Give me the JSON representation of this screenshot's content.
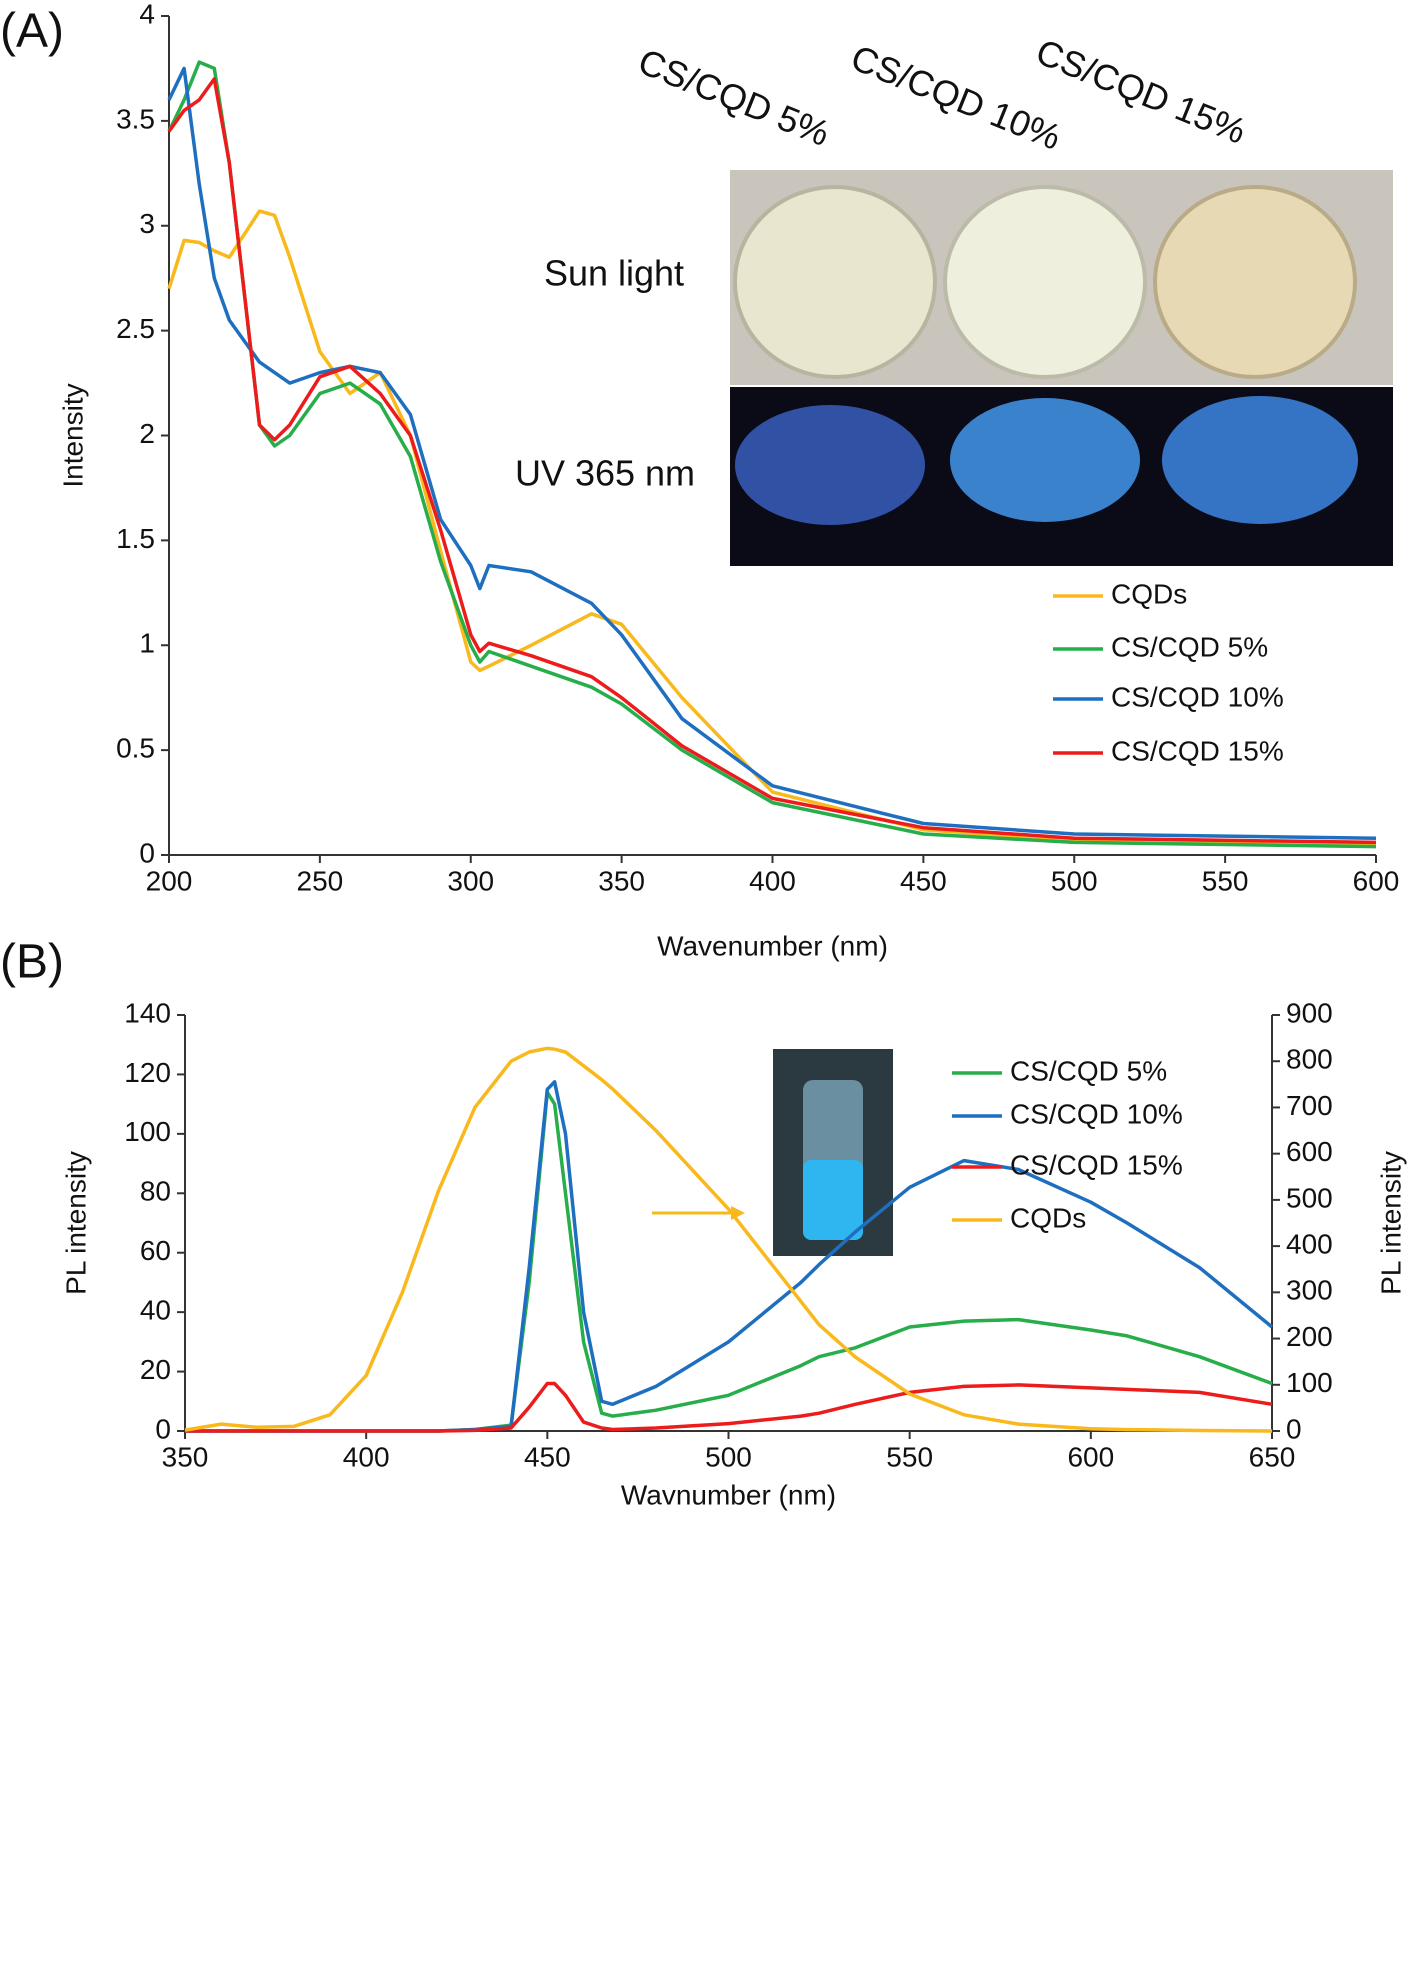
{
  "chart_data": [
    {
      "type": "line",
      "panel_label": "(A)",
      "xlabel": "Wavenumber (nm)",
      "ylabel": "Intensity",
      "x": [
        200,
        205,
        210,
        215,
        220,
        230,
        235,
        240,
        250,
        260,
        270,
        280,
        290,
        300,
        303,
        306,
        320,
        340,
        350,
        370,
        400,
        450,
        500,
        600
      ],
      "series": [
        {
          "name": "CQDs",
          "color": "#f9b81b",
          "values": [
            2.7,
            2.93,
            2.92,
            2.88,
            2.85,
            3.07,
            3.05,
            2.85,
            2.4,
            2.2,
            2.3,
            2.0,
            1.45,
            0.92,
            0.88,
            0.9,
            1.0,
            1.15,
            1.1,
            0.75,
            0.3,
            0.12,
            0.07,
            0.05
          ]
        },
        {
          "name": "CS/CQD 5%",
          "color": "#27ae4a",
          "values": [
            3.45,
            3.6,
            3.78,
            3.75,
            3.3,
            2.05,
            1.95,
            2.0,
            2.2,
            2.25,
            2.15,
            1.9,
            1.4,
            1.0,
            0.92,
            0.97,
            0.9,
            0.8,
            0.72,
            0.5,
            0.25,
            0.1,
            0.06,
            0.04
          ]
        },
        {
          "name": "CS/CQD 10%",
          "color": "#1f6fc0",
          "values": [
            3.6,
            3.75,
            3.2,
            2.75,
            2.55,
            2.35,
            2.3,
            2.25,
            2.3,
            2.33,
            2.3,
            2.1,
            1.6,
            1.38,
            1.27,
            1.38,
            1.35,
            1.2,
            1.05,
            0.65,
            0.33,
            0.15,
            0.1,
            0.08
          ]
        },
        {
          "name": "CS/CQD 15%",
          "color": "#ec1c1c",
          "values": [
            3.45,
            3.55,
            3.6,
            3.7,
            3.3,
            2.05,
            1.98,
            2.05,
            2.28,
            2.33,
            2.2,
            2.0,
            1.55,
            1.05,
            0.97,
            1.01,
            0.95,
            0.85,
            0.75,
            0.52,
            0.27,
            0.13,
            0.08,
            0.06
          ]
        }
      ],
      "xlim": [
        200,
        600
      ],
      "xticks": [
        200,
        250,
        300,
        350,
        400,
        450,
        500,
        550,
        600
      ],
      "ylim": [
        0,
        4
      ],
      "yticks": [
        0,
        0.5,
        1,
        1.5,
        2,
        2.5,
        3,
        3.5,
        4
      ],
      "annotations": [
        "CS/CQD 5%",
        "CS/CQD 10%",
        "CS/CQD 15%",
        "Sun light",
        "UV 365 nm"
      ]
    },
    {
      "type": "line",
      "panel_label": "(B)",
      "xlabel": "Wavnumber (nm)",
      "ylabel": "PL intensity",
      "y2label": "PL intensity",
      "x": [
        350,
        360,
        370,
        380,
        390,
        400,
        410,
        420,
        430,
        440,
        445,
        450,
        452,
        455,
        460,
        465,
        468,
        480,
        500,
        520,
        525,
        535,
        550,
        565,
        580,
        600,
        610,
        630,
        650
      ],
      "series": [
        {
          "name": "CS/CQD 5%",
          "color": "#27ae4a",
          "values": [
            0,
            0,
            0,
            0,
            0,
            0,
            0,
            0,
            0.5,
            2,
            50,
            114,
            110,
            80,
            30,
            6,
            5,
            7,
            12,
            22,
            25,
            28,
            35,
            37,
            37.5,
            34,
            32,
            25,
            16
          ]
        },
        {
          "name": "CS/CQD 10%",
          "color": "#1f6fc0",
          "values": [
            0,
            0,
            0,
            0,
            0,
            0,
            0,
            0,
            0.5,
            1.5,
            55,
            115,
            117.5,
            100,
            40,
            10,
            9,
            15,
            30,
            50,
            56,
            67,
            82,
            91,
            88,
            77,
            70,
            55,
            35
          ]
        },
        {
          "name": "CS/CQD 15%",
          "color": "#ec1c1c",
          "values": [
            0,
            0,
            0,
            0,
            0,
            0,
            0,
            0,
            0.2,
            1,
            8,
            16,
            16,
            12,
            3,
            1,
            0.5,
            1,
            2.5,
            5,
            6,
            9,
            13,
            15,
            15.5,
            14.5,
            14,
            13,
            9
          ]
        },
        {
          "name": "CQDs",
          "color": "#f9b81b",
          "axis": "y2",
          "values": [
            2,
            15,
            8,
            10,
            35,
            120,
            300,
            520,
            700,
            800,
            820,
            828,
            826,
            820,
            790,
            760,
            740,
            650,
            480,
            280,
            230,
            160,
            80,
            35,
            15,
            5,
            3,
            1,
            0
          ]
        }
      ],
      "xlim": [
        350,
        650
      ],
      "xticks": [
        350,
        400,
        450,
        500,
        550,
        600,
        650
      ],
      "ylim": [
        0,
        140
      ],
      "yticks": [
        0,
        20,
        40,
        60,
        80,
        100,
        120,
        140
      ],
      "y2lim": [
        0,
        900
      ],
      "y2ticks": [
        0,
        100,
        200,
        300,
        400,
        500,
        600,
        700,
        800,
        900
      ]
    }
  ]
}
